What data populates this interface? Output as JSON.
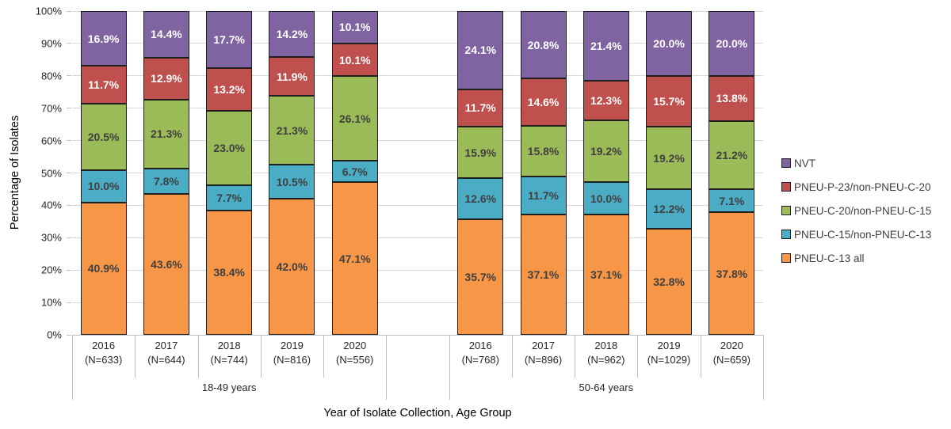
{
  "chart_data": {
    "type": "bar",
    "stacked": true,
    "title": "",
    "xlabel": "Year of Isolate Collection, Age Group",
    "ylabel": "Percentage of Isolates",
    "ylim": [
      0,
      100
    ],
    "ytick_step": 10,
    "ytick_suffix": "%",
    "grid": true,
    "legend_position": "right",
    "groups": [
      {
        "label": "18-49 years",
        "categories": [
          {
            "year": "2016",
            "n": "(N=633)"
          },
          {
            "year": "2017",
            "n": "(N=644)"
          },
          {
            "year": "2018",
            "n": "(N=744)"
          },
          {
            "year": "2019",
            "n": "(N=816)"
          },
          {
            "year": "2020",
            "n": "(N=556)"
          }
        ]
      },
      {
        "label": "50-64 years",
        "categories": [
          {
            "year": "2016",
            "n": "(N=768)"
          },
          {
            "year": "2017",
            "n": "(N=896)"
          },
          {
            "year": "2018",
            "n": "(N=962)"
          },
          {
            "year": "2019",
            "n": "(N=1029)"
          },
          {
            "year": "2020",
            "n": "(N=659)"
          }
        ]
      }
    ],
    "series_bottom_to_top": [
      {
        "name": "PNEU-C-13 all",
        "color": "#F79646",
        "label_style": "dark",
        "values": [
          [
            40.9,
            43.6,
            38.4,
            42.0,
            47.1
          ],
          [
            35.7,
            37.1,
            37.1,
            32.8,
            37.8
          ]
        ]
      },
      {
        "name": "PNEU-C-15/non-PNEU-C-13",
        "color": "#4BACC6",
        "label_style": "dark",
        "values": [
          [
            10.0,
            7.8,
            7.7,
            10.5,
            6.7
          ],
          [
            12.6,
            11.7,
            10.0,
            12.2,
            7.1
          ]
        ]
      },
      {
        "name": "PNEU-C-20/non-PNEU-C-15",
        "color": "#9BBB59",
        "label_style": "dark",
        "values": [
          [
            20.5,
            21.3,
            23.0,
            21.3,
            26.1
          ],
          [
            15.9,
            15.8,
            19.2,
            19.2,
            21.2
          ]
        ]
      },
      {
        "name": "PNEU-P-23/non-PNEU-C-20",
        "color": "#C0504D",
        "label_style": "light",
        "values": [
          [
            11.7,
            12.9,
            13.2,
            11.9,
            10.1
          ],
          [
            11.7,
            14.6,
            12.3,
            15.7,
            13.8
          ]
        ]
      },
      {
        "name": "NVT",
        "color": "#8064A2",
        "label_style": "light",
        "values": [
          [
            16.9,
            14.4,
            17.7,
            14.2,
            10.1
          ],
          [
            24.1,
            20.8,
            21.4,
            20.0,
            20.0
          ]
        ]
      }
    ],
    "legend_top_to_bottom": [
      "NVT",
      "PNEU-P-23/non-PNEU-C-20",
      "PNEU-C-20/non-PNEU-C-15",
      "PNEU-C-15/non-PNEU-C-13",
      "PNEU-C-13 all"
    ],
    "style": {
      "grid_color": "#D9D9D9",
      "axis_line_color": "#BFBFBF",
      "tick_mark_color": "#BFBFBF",
      "bar_border_color": "#1F1F1F",
      "axis_text_color": "#262626",
      "label_dark_color": "#404040",
      "label_light_color": "#FFFFFF",
      "legend_text_color": "#404040"
    }
  }
}
